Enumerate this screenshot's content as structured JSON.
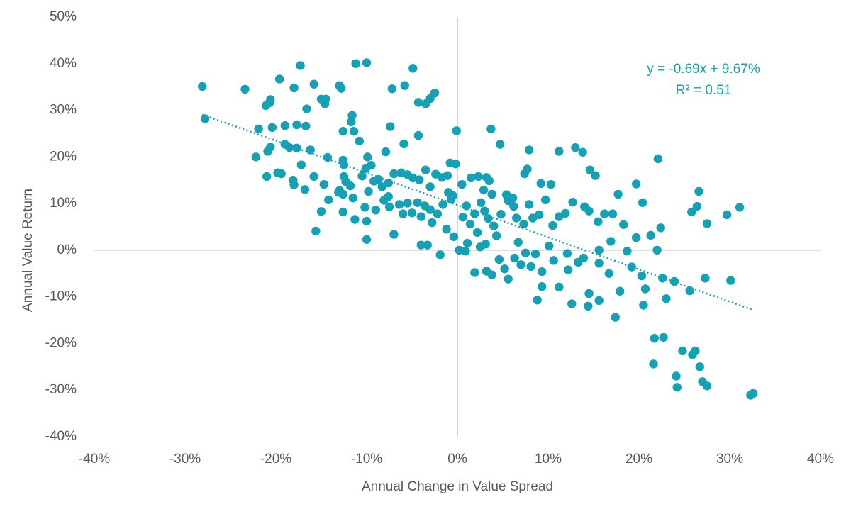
{
  "chart_data": {
    "type": "scatter",
    "x_label": "Annual Change in Value Spread",
    "y_label": "Annual Value Return",
    "annotations": [
      "y = -0.69x + 9.67%",
      "R² = 0.51"
    ],
    "trendline": {
      "slope": -0.69,
      "intercept": 9.67,
      "xlim": [
        -28.1,
        32.5
      ]
    },
    "xlim": [
      -40,
      40
    ],
    "ylim": [
      -40,
      50
    ],
    "xticks": [
      {
        "value": -40,
        "label": "-40%"
      },
      {
        "value": -30,
        "label": "-30%"
      },
      {
        "value": -20,
        "label": "-20%"
      },
      {
        "value": -10,
        "label": "-10%"
      },
      {
        "value": 0,
        "label": "0%"
      },
      {
        "value": 10,
        "label": "10%"
      },
      {
        "value": 20,
        "label": "20%"
      },
      {
        "value": 30,
        "label": "30%"
      },
      {
        "value": 40,
        "label": "40%"
      }
    ],
    "yticks": [
      {
        "value": -40,
        "label": "-40%"
      },
      {
        "value": -30,
        "label": "-30%"
      },
      {
        "value": -20,
        "label": "-20%"
      },
      {
        "value": -10,
        "label": "-10%"
      },
      {
        "value": 0,
        "label": "0%"
      },
      {
        "value": 10,
        "label": "10%"
      },
      {
        "value": 20,
        "label": "20%"
      },
      {
        "value": 30,
        "label": "30%"
      },
      {
        "value": 40,
        "label": "40%"
      },
      {
        "value": 50,
        "label": "50%"
      }
    ],
    "grid": false,
    "series": [
      {
        "color": "#14a0b5",
        "x": [
          -28.1,
          -27.8,
          -23.4,
          -21.1,
          -20.6,
          -20.7,
          -19.6,
          -18,
          -17.3,
          -16.6,
          -15.8,
          -15,
          -14.5,
          -14.6,
          -13,
          -12.8,
          -11.6,
          -11.7,
          -11.2,
          -10,
          -4.9,
          -5.8,
          -7.2,
          -2.5,
          -3,
          -4.3,
          -3.5,
          -21.9,
          -20.4,
          -19,
          -17.7,
          -16.7,
          -12.6,
          -11.4,
          -10.8,
          -7.4,
          -4.3,
          -5.9,
          -22.2,
          -20.6,
          -20.9,
          -19,
          -18.5,
          -17.7,
          -16.2,
          -14.3,
          -12.6,
          -12.5,
          -9.9,
          -7.9,
          -0.1,
          3.7,
          4.7,
          7.9,
          11.2,
          13,
          13.8,
          22.1,
          -21,
          -19.8,
          -19.4,
          -18.1,
          -18,
          -17.2,
          -16.8,
          -15.8,
          -14.7,
          -13.1,
          -12.5,
          -12.3,
          -12.6,
          -11.8,
          -11.5,
          -10.5,
          -10.1,
          -9.5,
          -9.8,
          -9.2,
          -8.7,
          -8.3,
          -7.6,
          -7.6,
          -7,
          -6.2,
          -5.5,
          -4.9,
          -4.2,
          -3.5,
          -3,
          -2.4,
          -1.7,
          -1.1,
          -0.8,
          -0.2,
          0.5,
          1.5,
          2.3,
          3.2,
          3.5,
          2.9,
          3.8,
          5.4,
          6.1,
          7.4,
          7.7,
          9.2,
          14.6,
          15.2,
          -15,
          -14.2,
          -13,
          -12.6,
          -11.3,
          -10.2,
          -10,
          -10,
          -9,
          -8.1,
          -7.5,
          -6.4,
          -6,
          -5.5,
          -5,
          -4.4,
          -4,
          -3.6,
          -3,
          -2.8,
          -2.2,
          -1.6,
          -1,
          -0.7,
          -0.5,
          0.6,
          1,
          1.4,
          1.9,
          2.6,
          3,
          3.4,
          4,
          4.8,
          5.6,
          6.2,
          6.5,
          7.3,
          7.9,
          8.3,
          9,
          9.7,
          10.5,
          11.2,
          11.9,
          12.7,
          14,
          14.5,
          15.5,
          16.2,
          17.1,
          17.7,
          19.7,
          20.4,
          -15.6,
          -7,
          -4,
          -3.3,
          -1.9,
          -1.2,
          -0.4,
          0.2,
          1.1,
          1.9,
          2.5,
          3.2,
          3.8,
          4.6,
          5.2,
          5.6,
          6.3,
          7,
          7.5,
          8.1,
          8.6,
          9.3,
          8.8,
          9.3,
          10.6,
          11.2,
          12.2,
          12.6,
          13.3,
          13.9,
          14.4,
          14.5,
          15.6,
          15.6,
          16.7,
          17.4,
          17.9,
          18.7,
          19.2,
          19.7,
          20.3,
          20.7,
          20.5,
          21.3,
          22,
          22.4,
          22.6,
          23,
          22.7,
          21.7,
          21.6,
          23.9,
          25.6,
          24.2,
          24.1,
          24.8,
          25.9,
          26.2,
          26.7,
          27,
          27.5,
          27.3,
          27.5,
          25.8,
          26.4,
          26.6,
          29.7,
          30.1,
          31.1,
          32.3,
          32.6,
          10.3,
          16.9,
          18.3,
          15.6,
          12.1,
          10.1,
          6.7,
          4.3,
          3.1,
          2.2,
          0.9
        ],
        "y": [
          35.1,
          28.2,
          34.5,
          31,
          32.3,
          31.6,
          36.7,
          34.8,
          39.6,
          30.3,
          35.6,
          32.4,
          32.4,
          31.4,
          35.3,
          34.7,
          28.9,
          27.5,
          40,
          40.2,
          39,
          35.3,
          34.6,
          33.7,
          32.5,
          31.7,
          31.4,
          26,
          26.3,
          26.7,
          26.9,
          26.6,
          25.5,
          25.5,
          23.4,
          26.5,
          24.6,
          22.8,
          20,
          22.1,
          21.2,
          22.7,
          22,
          21.9,
          21.5,
          19.9,
          19.3,
          18.3,
          20,
          21.1,
          25.6,
          26,
          22.7,
          21.5,
          21.2,
          22,
          21,
          19.6,
          15.8,
          16.6,
          16.4,
          15,
          14,
          18.3,
          13,
          15.8,
          14.1,
          12.4,
          15.8,
          14.7,
          12,
          13.8,
          11.2,
          15.9,
          17.5,
          18.2,
          12.6,
          14.8,
          15.2,
          13.6,
          11.5,
          14.4,
          16.4,
          16.6,
          16.2,
          15.5,
          15.1,
          17.2,
          13.6,
          16.3,
          15.6,
          16,
          18.7,
          18.5,
          14.1,
          15.5,
          15.8,
          15.6,
          14.9,
          12.9,
          12,
          11.9,
          11.2,
          16.4,
          17.4,
          14.3,
          17.2,
          16,
          8.3,
          10.8,
          12.8,
          8.2,
          6.6,
          9.2,
          6.2,
          2.3,
          8.6,
          10.7,
          9.3,
          9.8,
          7.8,
          10.1,
          8,
          10.2,
          7.2,
          9.5,
          8.7,
          5.9,
          7.8,
          9.8,
          12.4,
          10.9,
          11.7,
          7.1,
          9.5,
          5.6,
          7.8,
          10.2,
          8.4,
          6.8,
          5.2,
          7.7,
          10.6,
          9.4,
          6.9,
          5.6,
          9.8,
          6.9,
          7.6,
          10.8,
          5.3,
          7.2,
          7.9,
          10.3,
          9.3,
          8.4,
          6.1,
          7.8,
          7.8,
          12,
          14.2,
          10.2,
          4.1,
          3.4,
          1.1,
          1.1,
          -1,
          4.5,
          2.9,
          0,
          1.5,
          -4.8,
          0.7,
          -4.5,
          -5.3,
          -2,
          -4,
          -6.2,
          -1.7,
          -3.1,
          -0.6,
          -3.5,
          -0.8,
          -4.6,
          -10.7,
          -7.8,
          -2.2,
          -7.9,
          -4.2,
          -11.5,
          -2.6,
          -1.7,
          -12,
          -9.3,
          -2.8,
          -10.8,
          -5,
          -14.4,
          -8.8,
          -0.2,
          -3.6,
          2.7,
          -5.5,
          -8.3,
          -11.8,
          3.2,
          0,
          4.8,
          -6,
          -10.4,
          -18.7,
          -18.9,
          -24.4,
          -6.7,
          -8.7,
          -29.4,
          -27,
          -21.6,
          -22.4,
          -21.6,
          -25,
          -28.2,
          -29.1,
          -6,
          5.7,
          8.2,
          9.4,
          12.6,
          7.6,
          -6.5,
          9.2,
          -31.1,
          -30.7,
          14.1,
          1.9,
          5.5,
          0,
          -0.7,
          0.9,
          1.7,
          3.1,
          1.3,
          3.8,
          -0.2
        ]
      }
    ]
  }
}
